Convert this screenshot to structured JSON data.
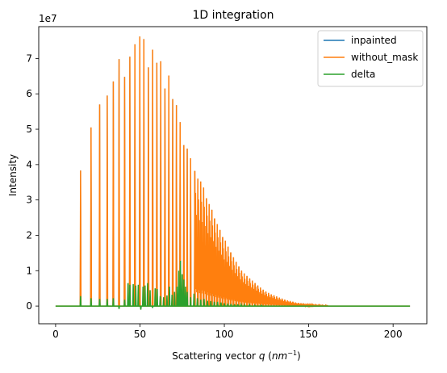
{
  "chart_data": {
    "type": "line",
    "title": "1D integration",
    "xlabel_prefix": "Scattering vector ",
    "xlabel_var": "q",
    "xlabel_unit_open": " (",
    "xlabel_unit": "nm",
    "xlabel_exp": "−1",
    "xlabel_unit_close": ")",
    "ylabel": "Intensity",
    "y_multiplier": "1e7",
    "xlim": [
      -10,
      220
    ],
    "ylim": [
      -0.5,
      7.9
    ],
    "y_units_scale": 10000000,
    "xticks": [
      0,
      50,
      100,
      150,
      200
    ],
    "yticks": [
      0,
      1,
      2,
      3,
      4,
      5,
      6,
      7
    ],
    "grid": false,
    "legend_position": "top-right",
    "x_range": [
      0,
      210
    ],
    "series": [
      {
        "name": "inpainted",
        "color": "#1f77b4",
        "note_values": "overlaps without_mask",
        "peaks": []
      },
      {
        "name": "without_mask",
        "color": "#ff7f0e",
        "peaks": [
          [
            14.8,
            3.83
          ],
          [
            21.0,
            5.05
          ],
          [
            26.1,
            5.7
          ],
          [
            30.6,
            5.95
          ],
          [
            34.2,
            6.35
          ],
          [
            37.6,
            6.98
          ],
          [
            40.9,
            6.48
          ],
          [
            44.0,
            7.05
          ],
          [
            47.0,
            7.4
          ],
          [
            49.9,
            7.62
          ],
          [
            52.3,
            7.55
          ],
          [
            55.0,
            6.75
          ],
          [
            57.5,
            7.25
          ],
          [
            60.0,
            6.88
          ],
          [
            62.3,
            6.92
          ],
          [
            64.8,
            6.15
          ],
          [
            67.1,
            6.52
          ],
          [
            69.4,
            5.85
          ],
          [
            71.6,
            5.68
          ],
          [
            73.8,
            5.2
          ],
          [
            76.0,
            4.55
          ],
          [
            78.0,
            4.45
          ],
          [
            80.0,
            4.18
          ],
          [
            82.5,
            3.82
          ],
          [
            84.3,
            3.6
          ],
          [
            86.0,
            3.52
          ],
          [
            87.7,
            3.35
          ],
          [
            89.4,
            3.05
          ],
          [
            91.0,
            2.88
          ],
          [
            92.6,
            2.72
          ],
          [
            94.2,
            2.48
          ],
          [
            95.8,
            2.32
          ],
          [
            97.4,
            2.15
          ],
          [
            99.0,
            1.95
          ],
          [
            100.6,
            1.85
          ],
          [
            102.2,
            1.68
          ],
          [
            103.8,
            1.52
          ],
          [
            105.4,
            1.38
          ],
          [
            107.0,
            1.25
          ],
          [
            108.6,
            1.12
          ],
          [
            110.2,
            1.0
          ],
          [
            111.8,
            0.92
          ],
          [
            113.4,
            0.85
          ],
          [
            115.0,
            0.78
          ],
          [
            116.6,
            0.72
          ],
          [
            118.2,
            0.65
          ],
          [
            119.8,
            0.58
          ],
          [
            121.4,
            0.52
          ],
          [
            123.0,
            0.46
          ],
          [
            124.6,
            0.41
          ],
          [
            126.2,
            0.37
          ],
          [
            127.8,
            0.33
          ],
          [
            129.4,
            0.3
          ],
          [
            131.0,
            0.27
          ],
          [
            132.6,
            0.24
          ],
          [
            134.2,
            0.21
          ],
          [
            135.8,
            0.18
          ],
          [
            137.4,
            0.16
          ],
          [
            139.0,
            0.14
          ],
          [
            140.6,
            0.12
          ],
          [
            142.2,
            0.1
          ],
          [
            143.8,
            0.09
          ],
          [
            145.4,
            0.08
          ],
          [
            147.0,
            0.07
          ],
          [
            148.6,
            0.06
          ],
          [
            150.2,
            0.05
          ],
          [
            152.0,
            0.04
          ],
          [
            154.0,
            0.03
          ],
          [
            156.0,
            0.03
          ],
          [
            158.0,
            0.02
          ],
          [
            160.0,
            0.02
          ]
        ]
      },
      {
        "name": "delta",
        "color": "#2ca02c",
        "peaks": [
          [
            14.8,
            0.28
          ],
          [
            21.0,
            0.22
          ],
          [
            26.1,
            0.2
          ],
          [
            30.6,
            0.2
          ],
          [
            34.2,
            0.22
          ],
          [
            37.6,
            -0.08
          ],
          [
            40.9,
            0.18
          ],
          [
            42.9,
            0.65
          ],
          [
            44.0,
            0.6
          ],
          [
            46.0,
            0.62
          ],
          [
            47.5,
            0.58
          ],
          [
            49.0,
            0.6
          ],
          [
            50.5,
            -0.1
          ],
          [
            51.8,
            0.55
          ],
          [
            53.0,
            0.58
          ],
          [
            54.5,
            0.65
          ],
          [
            56.0,
            0.45
          ],
          [
            57.5,
            -0.05
          ],
          [
            59.0,
            0.5
          ],
          [
            60.2,
            0.48
          ],
          [
            62.0,
            0.28
          ],
          [
            64.0,
            0.25
          ],
          [
            66.0,
            0.3
          ],
          [
            67.5,
            0.55
          ],
          [
            69.0,
            0.32
          ],
          [
            70.5,
            0.4
          ],
          [
            72.0,
            0.55
          ],
          [
            73.0,
            1.0
          ],
          [
            74.0,
            1.28
          ],
          [
            75.0,
            0.9
          ],
          [
            76.0,
            0.75
          ],
          [
            77.0,
            0.55
          ],
          [
            78.0,
            0.4
          ],
          [
            80.0,
            0.25
          ],
          [
            82.0,
            0.35
          ],
          [
            84.0,
            0.22
          ],
          [
            86.0,
            0.18
          ],
          [
            88.0,
            0.2
          ],
          [
            90.0,
            0.15
          ],
          [
            92.0,
            0.14
          ],
          [
            94.0,
            0.12
          ],
          [
            96.0,
            0.12
          ],
          [
            98.0,
            0.1
          ],
          [
            100.0,
            0.08
          ],
          [
            102.0,
            0.07
          ],
          [
            104.0,
            0.06
          ],
          [
            106.0,
            0.05
          ],
          [
            108.0,
            0.05
          ],
          [
            110.0,
            0.04
          ],
          [
            112.0,
            0.03
          ],
          [
            115.0,
            0.03
          ],
          [
            118.0,
            0.02
          ],
          [
            122.0,
            0.02
          ]
        ]
      }
    ]
  }
}
